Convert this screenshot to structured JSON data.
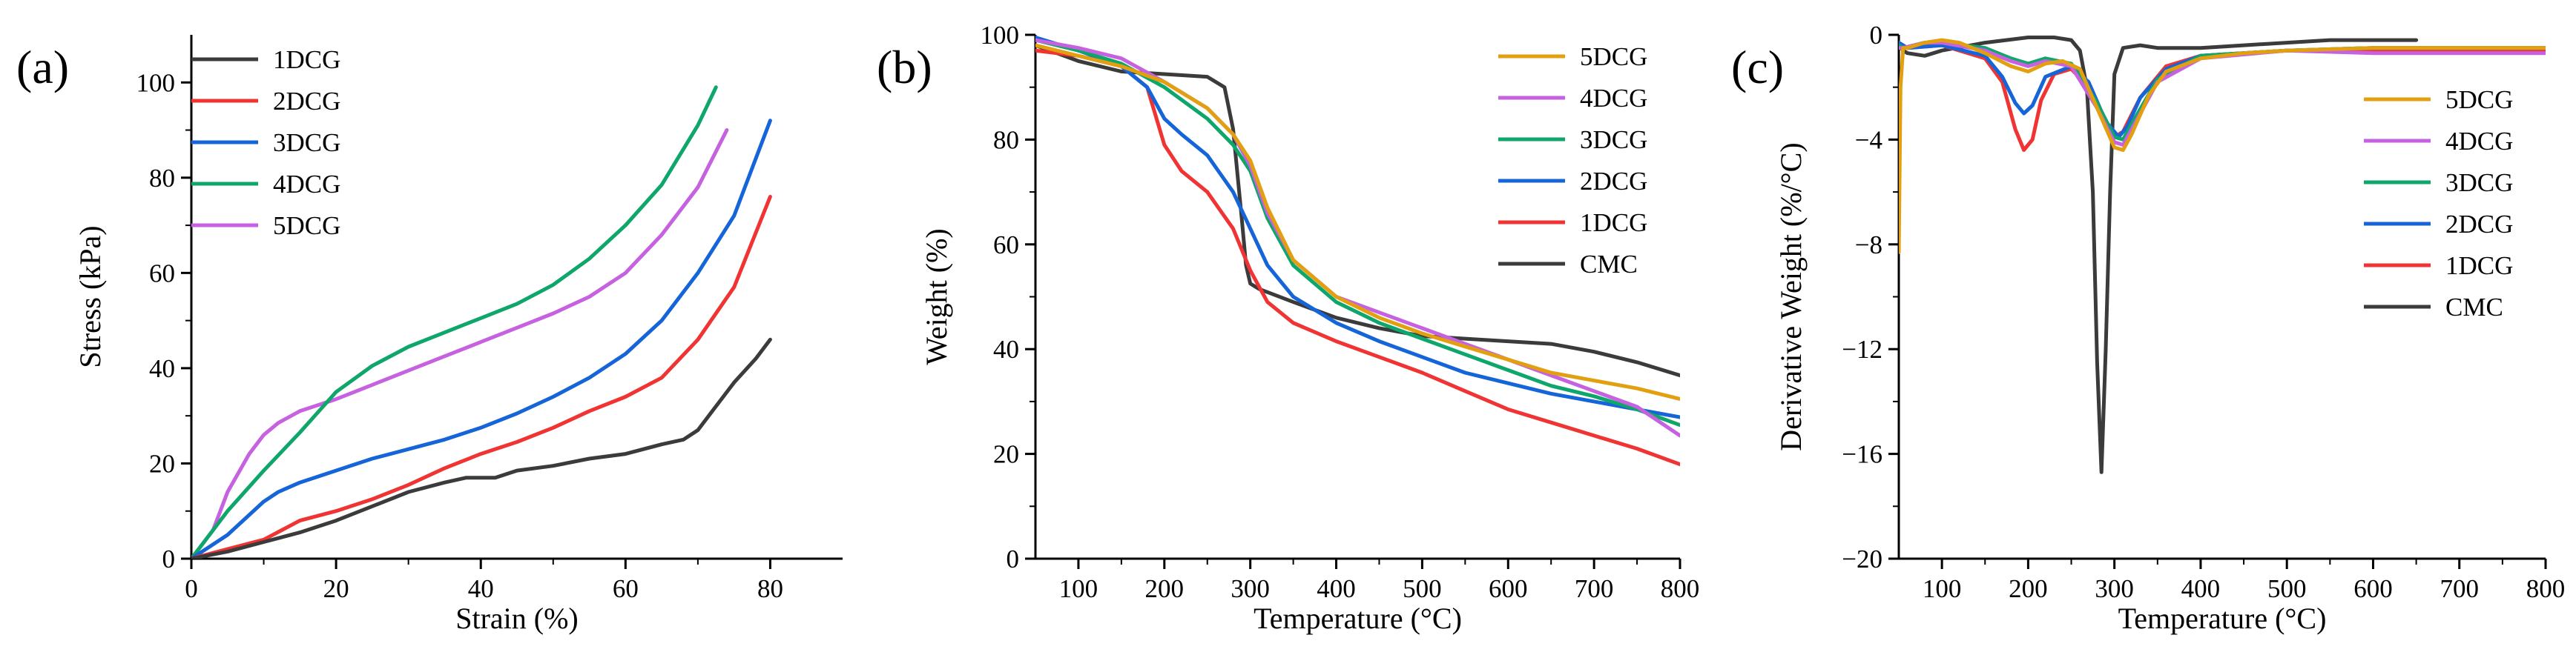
{
  "chart_data": [
    {
      "panel": "(a)",
      "type": "line",
      "xlabel": "Strain (%)",
      "ylabel": "Stress (kPa)",
      "xlim": [
        0,
        90
      ],
      "ylim": [
        0,
        110
      ],
      "xticks": [
        0,
        20,
        40,
        60,
        80
      ],
      "yticks": [
        0,
        20,
        40,
        60,
        80,
        100
      ],
      "legend_position": "top-left",
      "series": [
        {
          "name": "1DCG",
          "color": "#3b3b3b",
          "x": [
            0,
            5,
            10,
            15,
            20,
            25,
            30,
            35,
            38,
            40,
            42,
            45,
            50,
            55,
            60,
            65,
            68,
            70,
            72,
            75,
            78,
            80
          ],
          "y": [
            0,
            1.5,
            3.5,
            5.5,
            8,
            11,
            14,
            16,
            17,
            17,
            17,
            18.5,
            19.5,
            21,
            22,
            24,
            25,
            27,
            31,
            37,
            42,
            46
          ]
        },
        {
          "name": "2DCG",
          "color": "#f03333",
          "x": [
            0,
            5,
            10,
            15,
            20,
            25,
            30,
            35,
            40,
            45,
            50,
            55,
            60,
            65,
            70,
            75,
            80
          ],
          "y": [
            0,
            2,
            4,
            8,
            10,
            12.5,
            15.5,
            19,
            22,
            24.5,
            27.5,
            31,
            34,
            38,
            46,
            57,
            76
          ]
        },
        {
          "name": "3DCG",
          "color": "#1565d8",
          "x": [
            0,
            5,
            10,
            12,
            15,
            20,
            25,
            30,
            35,
            40,
            45,
            50,
            55,
            60,
            65,
            70,
            75,
            80
          ],
          "y": [
            0,
            5,
            12,
            14,
            16,
            18.5,
            21,
            23,
            25,
            27.5,
            30.5,
            34,
            38,
            43,
            50,
            60,
            72,
            92
          ]
        },
        {
          "name": "4DCG",
          "color": "#0ea66a",
          "x": [
            0,
            5,
            10,
            15,
            20,
            25,
            30,
            35,
            40,
            45,
            50,
            55,
            60,
            65,
            70,
            72.5
          ],
          "y": [
            0,
            10,
            18.5,
            26.5,
            35,
            40.5,
            44.5,
            47.5,
            50.5,
            53.5,
            57.5,
            63,
            70,
            78.5,
            91,
            99
          ]
        },
        {
          "name": "5DCG",
          "color": "#c661e0",
          "x": [
            0,
            3,
            5,
            8,
            10,
            12,
            15,
            20,
            25,
            30,
            35,
            40,
            45,
            50,
            55,
            60,
            65,
            70,
            74
          ],
          "y": [
            0,
            6,
            14,
            22,
            26,
            28.5,
            31,
            33.5,
            36.5,
            39.5,
            42.5,
            45.5,
            48.5,
            51.5,
            55,
            60,
            68,
            78,
            90
          ]
        }
      ]
    },
    {
      "panel": "(b)",
      "type": "line",
      "xlabel": "Temperature (°C)",
      "ylabel": "Weight (%)",
      "xlim": [
        50,
        800
      ],
      "ylim": [
        0,
        100
      ],
      "xticks": [
        100,
        200,
        300,
        400,
        500,
        600,
        700,
        800
      ],
      "yticks": [
        0,
        20,
        40,
        60,
        80,
        100
      ],
      "legend_position": "top-right",
      "series": [
        {
          "name": "5DCG",
          "color": "#e2a010",
          "x": [
            50,
            100,
            150,
            200,
            250,
            280,
            300,
            320,
            350,
            400,
            450,
            500,
            550,
            600,
            650,
            700,
            750,
            800
          ],
          "y": [
            98,
            96,
            94,
            91,
            86,
            81,
            76,
            67,
            57,
            50,
            46,
            43,
            40.5,
            38,
            35.5,
            34,
            32.5,
            30.5
          ]
        },
        {
          "name": "4DCG",
          "color": "#c661e0",
          "x": [
            50,
            100,
            150,
            200,
            250,
            280,
            300,
            320,
            350,
            400,
            450,
            500,
            550,
            600,
            650,
            700,
            750,
            800
          ],
          "y": [
            99,
            97.5,
            95.5,
            91,
            86,
            81,
            75,
            66,
            57,
            50,
            47,
            44,
            41,
            38,
            35,
            32,
            29,
            23.5
          ]
        },
        {
          "name": "3DCG",
          "color": "#0ea66a",
          "x": [
            50,
            100,
            150,
            200,
            250,
            280,
            300,
            320,
            350,
            400,
            450,
            500,
            550,
            600,
            650,
            700,
            750,
            800
          ],
          "y": [
            99,
            97,
            94.5,
            90,
            84,
            79,
            74,
            65,
            56,
            49,
            45,
            42,
            39,
            36,
            33,
            31,
            28.5,
            25.5
          ]
        },
        {
          "name": "2DCG",
          "color": "#1565d8",
          "x": [
            50,
            80,
            100,
            150,
            180,
            200,
            220,
            250,
            280,
            300,
            320,
            350,
            400,
            450,
            500,
            550,
            600,
            650,
            700,
            750,
            800
          ],
          "y": [
            99.5,
            98,
            97,
            94,
            90,
            84,
            81,
            77,
            70,
            63,
            56,
            50,
            45,
            41.5,
            38.5,
            35.5,
            33.5,
            31.5,
            30,
            28.5,
            27
          ]
        },
        {
          "name": "1DCG",
          "color": "#f03333",
          "x": [
            50,
            100,
            150,
            180,
            200,
            220,
            250,
            280,
            300,
            320,
            350,
            400,
            450,
            500,
            550,
            600,
            650,
            700,
            750,
            800
          ],
          "y": [
            97,
            96,
            94,
            90,
            79,
            74,
            70,
            63,
            55,
            49,
            45,
            41.5,
            38.5,
            35.5,
            32,
            28.5,
            26,
            23.5,
            21,
            18
          ]
        },
        {
          "name": "CMC",
          "color": "#3b3b3b",
          "x": [
            50,
            100,
            150,
            200,
            250,
            270,
            280,
            290,
            295,
            300,
            310,
            350,
            400,
            450,
            500,
            550,
            600,
            650,
            700,
            750,
            800
          ],
          "y": [
            98,
            95,
            93,
            92.5,
            92,
            90,
            82,
            65,
            56,
            52.5,
            51.5,
            49,
            46,
            44,
            42.5,
            42,
            41.5,
            41,
            39.5,
            37.5,
            35
          ]
        }
      ]
    },
    {
      "panel": "(c)",
      "type": "line",
      "xlabel": "Temperature (°C)",
      "ylabel": "Derivative Weight (%/°C)",
      "xlim": [
        50,
        800
      ],
      "ylim": [
        -20,
        0
      ],
      "xticks": [
        100,
        200,
        300,
        400,
        500,
        600,
        700,
        800
      ],
      "yticks": [
        0,
        -4,
        -8,
        -12,
        -16,
        -20
      ],
      "legend_position": "top-right",
      "series": [
        {
          "name": "5DCG",
          "color": "#e2a010",
          "x": [
            50,
            52,
            55,
            60,
            80,
            100,
            120,
            150,
            180,
            200,
            220,
            240,
            260,
            280,
            300,
            310,
            320,
            340,
            360,
            400,
            450,
            500,
            600,
            700,
            800
          ],
          "y": [
            -8.3,
            -2,
            -0.5,
            -0.5,
            -0.3,
            -0.2,
            -0.3,
            -0.7,
            -1.2,
            -1.4,
            -1.1,
            -1.0,
            -1.3,
            -2.8,
            -4.3,
            -4.4,
            -3.8,
            -2.3,
            -1.4,
            -0.9,
            -0.7,
            -0.6,
            -0.5,
            -0.5,
            -0.5
          ]
        },
        {
          "name": "4DCG",
          "color": "#c661e0",
          "x": [
            50,
            55,
            80,
            100,
            150,
            180,
            200,
            220,
            250,
            280,
            300,
            310,
            320,
            350,
            400,
            500,
            600,
            700,
            800
          ],
          "y": [
            -0.5,
            -0.5,
            -0.3,
            -0.3,
            -0.6,
            -1.0,
            -1.2,
            -1.0,
            -1.2,
            -2.8,
            -4.1,
            -4.2,
            -3.6,
            -1.8,
            -0.9,
            -0.6,
            -0.7,
            -0.7,
            -0.7
          ]
        },
        {
          "name": "3DCG",
          "color": "#0ea66a",
          "x": [
            50,
            55,
            80,
            100,
            150,
            180,
            200,
            220,
            250,
            280,
            300,
            310,
            320,
            350,
            400,
            500,
            600,
            700,
            800
          ],
          "y": [
            -0.4,
            -0.5,
            -0.3,
            -0.3,
            -0.5,
            -0.9,
            -1.1,
            -0.9,
            -1.1,
            -2.6,
            -3.9,
            -4.0,
            -3.4,
            -1.7,
            -0.8,
            -0.6,
            -0.5,
            -0.5,
            -0.5
          ]
        },
        {
          "name": "2DCG",
          "color": "#1565d8",
          "x": [
            50,
            60,
            100,
            150,
            170,
            185,
            195,
            205,
            220,
            250,
            270,
            290,
            305,
            315,
            330,
            360,
            400,
            500,
            600,
            700,
            800
          ],
          "y": [
            -0.3,
            -0.5,
            -0.4,
            -0.8,
            -1.6,
            -2.6,
            -3.0,
            -2.7,
            -1.6,
            -1.2,
            -1.8,
            -3.3,
            -3.9,
            -3.5,
            -2.4,
            -1.3,
            -0.8,
            -0.6,
            -0.5,
            -0.5,
            -0.5
          ]
        },
        {
          "name": "1DCG",
          "color": "#f03333",
          "x": [
            50,
            60,
            100,
            150,
            170,
            185,
            195,
            205,
            215,
            230,
            250,
            270,
            290,
            300,
            310,
            330,
            360,
            400,
            500,
            600,
            700,
            800
          ],
          "y": [
            -0.3,
            -0.5,
            -0.4,
            -0.9,
            -1.8,
            -3.6,
            -4.4,
            -4.0,
            -2.5,
            -1.5,
            -1.3,
            -2.0,
            -3.4,
            -3.9,
            -3.7,
            -2.4,
            -1.2,
            -0.8,
            -0.6,
            -0.6,
            -0.6,
            -0.6
          ]
        },
        {
          "name": "CMC",
          "color": "#3b3b3b",
          "x": [
            50,
            55,
            60,
            80,
            100,
            150,
            200,
            230,
            250,
            260,
            268,
            275,
            280,
            285,
            290,
            295,
            300,
            310,
            330,
            350,
            400,
            450,
            500,
            550,
            600,
            650
          ],
          "y": [
            -0.4,
            -0.6,
            -0.7,
            -0.8,
            -0.6,
            -0.3,
            -0.1,
            -0.1,
            -0.2,
            -0.6,
            -2.0,
            -6.0,
            -12.5,
            -16.7,
            -12.0,
            -6.0,
            -1.5,
            -0.5,
            -0.4,
            -0.5,
            -0.5,
            -0.4,
            -0.3,
            -0.2,
            -0.2,
            -0.2
          ]
        }
      ]
    }
  ]
}
